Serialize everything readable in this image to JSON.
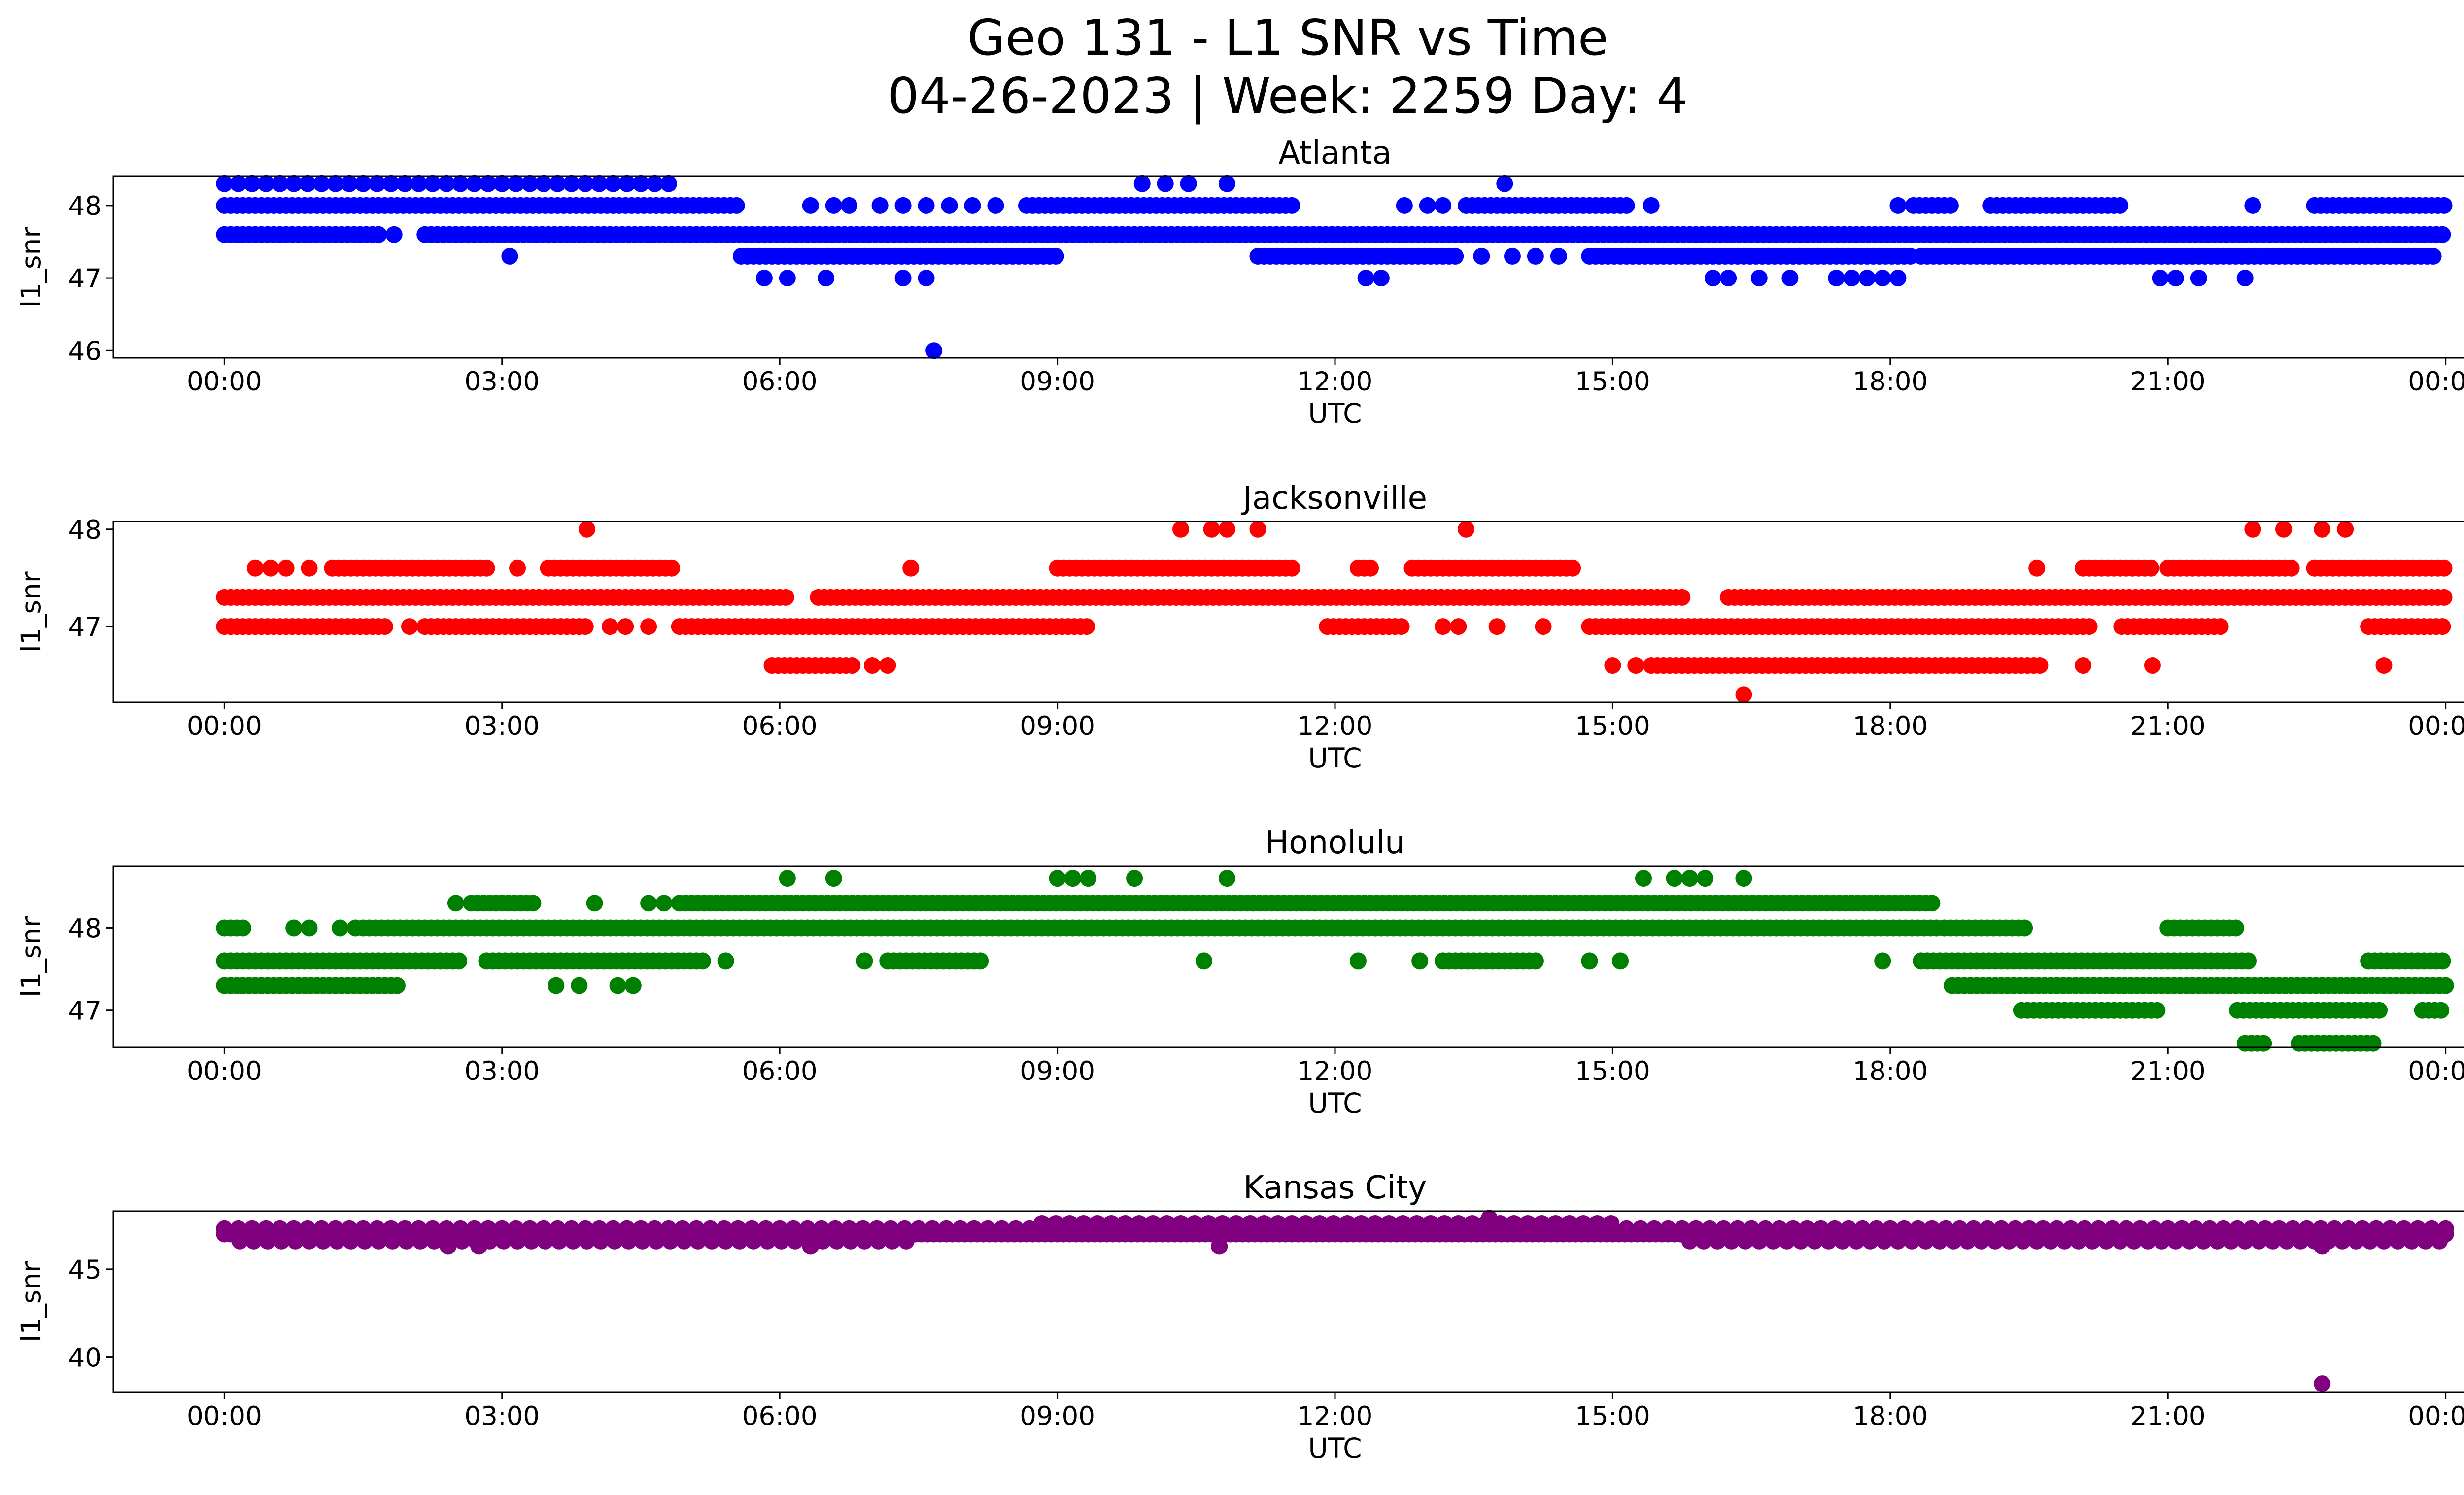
{
  "figure": {
    "title_line1": "Geo 131 - L1 SNR vs Time",
    "title_line2": "04-26-2023 | Week: 2259 Day: 4"
  },
  "chart_data": [
    {
      "type": "scatter",
      "title": "Atlanta",
      "xlabel": "UTC",
      "ylabel": "l1_snr",
      "color": "#0000ff",
      "xlim": [
        "2023-04-26T00:00",
        "2023-04-27T00:00"
      ],
      "ylim": [
        45.9,
        48.4
      ],
      "xticks": [
        "00:00",
        "03:00",
        "06:00",
        "09:00",
        "12:00",
        "15:00",
        "18:00",
        "21:00",
        "00:00"
      ],
      "yticks": [
        46,
        47,
        48
      ],
      "levels": [
        {
          "y": 48.3,
          "ranges": [
            [
              "00:00",
              "04:50"
            ]
          ],
          "sparse": true
        },
        {
          "y": 48.3,
          "points": [
            "09:55",
            "10:10",
            "10:25",
            "10:50",
            "13:50"
          ]
        },
        {
          "y": 48.0,
          "ranges": [
            [
              "00:00",
              "05:35"
            ],
            [
              "08:40",
              "11:35"
            ],
            [
              "13:25",
              "15:10"
            ],
            [
              "18:15",
              "18:40"
            ],
            [
              "19:05",
              "20:30"
            ],
            [
              "22:35",
              "24:00"
            ]
          ]
        },
        {
          "y": 48.0,
          "points": [
            "06:20",
            "06:35",
            "06:45",
            "07:05",
            "07:20",
            "07:35",
            "07:50",
            "08:05",
            "08:20",
            "12:45",
            "13:00",
            "13:10",
            "15:25",
            "18:05",
            "21:55"
          ]
        },
        {
          "y": 47.6,
          "ranges": [
            [
              "00:00",
              "01:40"
            ],
            [
              "02:10",
              "24:00"
            ]
          ]
        },
        {
          "y": 47.6,
          "points": [
            "01:50"
          ]
        },
        {
          "y": 47.3,
          "ranges": [
            [
              "05:35",
              "09:00"
            ],
            [
              "11:10",
              "13:20"
            ],
            [
              "14:45",
              "18:15"
            ],
            [
              "18:20",
              "23:55"
            ]
          ]
        },
        {
          "y": 47.3,
          "points": [
            "03:05",
            "13:35",
            "13:55",
            "14:10",
            "14:25"
          ]
        },
        {
          "y": 47.0,
          "points": [
            "05:50",
            "06:05",
            "06:30",
            "07:20",
            "07:35",
            "12:20",
            "12:30",
            "16:05",
            "16:15",
            "16:35",
            "16:55",
            "17:25",
            "17:35",
            "17:45",
            "17:55",
            "18:05",
            "20:55",
            "21:05",
            "21:20",
            "21:50"
          ]
        },
        {
          "y": 46.0,
          "points": [
            "07:40"
          ]
        }
      ]
    },
    {
      "type": "scatter",
      "title": "Jacksonville",
      "xlabel": "UTC",
      "ylabel": "l1_snr",
      "color": "#ff0000",
      "xlim": [
        "2023-04-26T00:00",
        "2023-04-27T00:00"
      ],
      "ylim": [
        46.22,
        48.08
      ],
      "xticks": [
        "00:00",
        "03:00",
        "06:00",
        "09:00",
        "12:00",
        "15:00",
        "18:00",
        "21:00",
        "00:00"
      ],
      "yticks": [
        47,
        48
      ],
      "levels": [
        {
          "y": 48.0,
          "points": [
            "03:55",
            "10:20",
            "10:40",
            "10:50",
            "11:10",
            "13:25",
            "21:55",
            "22:15",
            "22:40",
            "22:55"
          ]
        },
        {
          "y": 47.6,
          "ranges": [
            [
              "01:10",
              "02:50"
            ],
            [
              "03:30",
              "04:50"
            ],
            [
              "09:00",
              "11:35"
            ],
            [
              "12:15",
              "12:25"
            ],
            [
              "12:50",
              "14:35"
            ],
            [
              "20:05",
              "20:50"
            ],
            [
              "21:00",
              "22:20"
            ],
            [
              "22:35",
              "24:00"
            ]
          ]
        },
        {
          "y": 47.6,
          "points": [
            "00:20",
            "00:30",
            "00:40",
            "00:55",
            "03:10",
            "07:25",
            "19:35"
          ]
        },
        {
          "y": 47.3,
          "ranges": [
            [
              "00:00",
              "06:05"
            ],
            [
              "06:25",
              "15:45"
            ],
            [
              "16:15",
              "24:00"
            ]
          ]
        },
        {
          "y": 47.0,
          "ranges": [
            [
              "00:00",
              "01:45"
            ],
            [
              "02:10",
              "03:55"
            ],
            [
              "04:55",
              "09:20"
            ],
            [
              "11:55",
              "12:45"
            ],
            [
              "14:45",
              "20:10"
            ],
            [
              "20:30",
              "21:35"
            ],
            [
              "23:10",
              "24:00"
            ]
          ]
        },
        {
          "y": 47.0,
          "points": [
            "02:00",
            "04:10",
            "04:20",
            "04:35",
            "13:10",
            "13:20",
            "13:45",
            "14:15"
          ]
        },
        {
          "y": 46.6,
          "ranges": [
            [
              "05:55",
              "06:50"
            ],
            [
              "15:25",
              "19:40"
            ]
          ]
        },
        {
          "y": 46.6,
          "points": [
            "07:00",
            "07:10",
            "15:00",
            "15:15",
            "20:05",
            "20:50",
            "23:20"
          ]
        },
        {
          "y": 46.3,
          "points": [
            "16:25"
          ]
        }
      ]
    },
    {
      "type": "scatter",
      "title": "Honolulu",
      "xlabel": "UTC",
      "ylabel": "l1_snr",
      "color": "#008000",
      "xlim": [
        "2023-04-26T00:00",
        "2023-04-27T00:00"
      ],
      "ylim": [
        46.55,
        48.75
      ],
      "xticks": [
        "00:00",
        "03:00",
        "06:00",
        "09:00",
        "12:00",
        "15:00",
        "18:00",
        "21:00",
        "00:00"
      ],
      "yticks": [
        47,
        48
      ],
      "levels": [
        {
          "y": 48.6,
          "points": [
            "06:05",
            "06:35",
            "09:00",
            "09:10",
            "09:20",
            "09:50",
            "10:50",
            "15:20",
            "15:40",
            "15:50",
            "16:00",
            "16:25"
          ]
        },
        {
          "y": 48.3,
          "ranges": [
            [
              "02:40",
              "03:20"
            ],
            [
              "04:55",
              "18:30"
            ]
          ]
        },
        {
          "y": 48.3,
          "points": [
            "02:30",
            "04:00",
            "04:35",
            "04:45"
          ]
        },
        {
          "y": 48.0,
          "ranges": [
            [
              "00:00",
              "00:15"
            ],
            [
              "01:30",
              "18:30"
            ],
            [
              "18:35",
              "19:30"
            ],
            [
              "21:00",
              "21:45"
            ]
          ]
        },
        {
          "y": 48.0,
          "points": [
            "00:45",
            "00:55",
            "01:15",
            "01:25"
          ]
        },
        {
          "y": 47.6,
          "ranges": [
            [
              "00:00",
              "02:35"
            ],
            [
              "02:50",
              "05:10"
            ],
            [
              "07:10",
              "08:10"
            ],
            [
              "13:10",
              "14:10"
            ],
            [
              "18:20",
              "21:55"
            ],
            [
              "23:10",
              "24:00"
            ]
          ]
        },
        {
          "y": 47.6,
          "points": [
            "05:25",
            "06:55",
            "10:35",
            "12:15",
            "12:55",
            "14:45",
            "15:05",
            "17:55"
          ]
        },
        {
          "y": 47.3,
          "ranges": [
            [
              "00:00",
              "01:55"
            ],
            [
              "18:40",
              "24:00"
            ]
          ]
        },
        {
          "y": 47.3,
          "points": [
            "03:35",
            "03:50",
            "04:15",
            "04:25"
          ]
        },
        {
          "y": 47.0,
          "ranges": [
            [
              "19:25",
              "20:55"
            ],
            [
              "21:45",
              "23:20"
            ],
            [
              "23:45",
              "24:00"
            ]
          ]
        },
        {
          "y": 46.6,
          "ranges": [
            [
              "21:50",
              "22:05"
            ],
            [
              "22:25",
              "23:15"
            ]
          ]
        }
      ]
    },
    {
      "type": "scatter",
      "title": "Kansas City",
      "xlabel": "UTC",
      "ylabel": "l1_snr",
      "color": "#800080",
      "xlim": [
        "2023-04-26T00:00",
        "2023-04-27T00:00"
      ],
      "ylim": [
        38.0,
        48.3
      ],
      "xticks": [
        "00:00",
        "03:00",
        "06:00",
        "09:00",
        "12:00",
        "15:00",
        "18:00",
        "21:00",
        "00:00"
      ],
      "yticks": [
        40,
        45
      ],
      "levels": [
        {
          "y": 47.9,
          "points": [
            "13:40"
          ]
        },
        {
          "y": 47.6,
          "ranges": [
            [
              "08:50",
              "15:00"
            ]
          ],
          "sparse": true
        },
        {
          "y": 47.3,
          "ranges": [
            [
              "00:00",
              "24:00"
            ]
          ],
          "sparse": true
        },
        {
          "y": 47.0,
          "ranges": [
            [
              "00:00",
              "24:00"
            ]
          ]
        },
        {
          "y": 46.6,
          "ranges": [
            [
              "00:10",
              "07:30"
            ],
            [
              "15:50",
              "24:00"
            ]
          ],
          "sparse": true
        },
        {
          "y": 46.3,
          "points": [
            "02:25",
            "02:45",
            "06:20",
            "10:45",
            "22:40"
          ]
        },
        {
          "y": 38.5,
          "points": [
            "22:40"
          ]
        }
      ]
    }
  ]
}
